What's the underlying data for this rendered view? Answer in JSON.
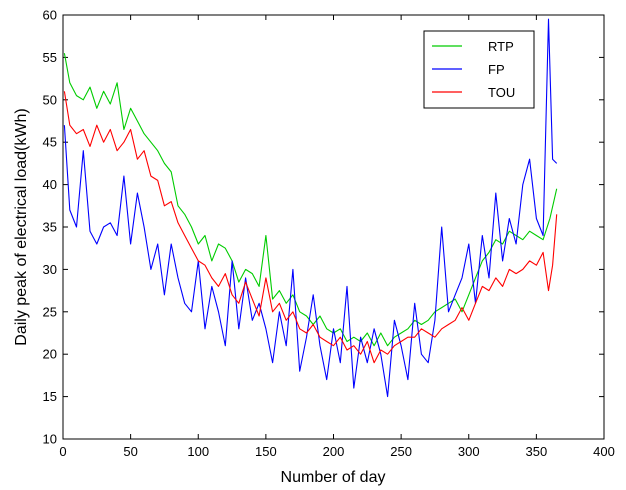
{
  "chart_data": {
    "type": "line",
    "title": "",
    "xlabel": "Number of day",
    "ylabel": "Daily peak of electrical load(kWh)",
    "xlim": [
      0,
      400
    ],
    "ylim": [
      10,
      60
    ],
    "xticks": [
      0,
      50,
      100,
      150,
      200,
      250,
      300,
      350,
      400
    ],
    "yticks": [
      10,
      15,
      20,
      25,
      30,
      35,
      40,
      45,
      50,
      55,
      60
    ],
    "grid": false,
    "legend_position": "top-right",
    "series": [
      {
        "name": "RTP",
        "color": "#00cc00",
        "x": [
          1,
          5,
          10,
          15,
          20,
          25,
          30,
          35,
          40,
          45,
          50,
          55,
          60,
          65,
          70,
          75,
          80,
          85,
          90,
          95,
          100,
          105,
          110,
          115,
          120,
          125,
          130,
          135,
          140,
          145,
          150,
          155,
          160,
          165,
          170,
          175,
          180,
          185,
          190,
          195,
          200,
          205,
          210,
          215,
          220,
          225,
          230,
          235,
          240,
          245,
          250,
          255,
          260,
          265,
          270,
          275,
          280,
          285,
          290,
          295,
          300,
          305,
          310,
          315,
          320,
          325,
          330,
          335,
          340,
          345,
          350,
          355,
          360,
          365
        ],
        "y": [
          55.5,
          52,
          50.5,
          50,
          51.5,
          49,
          51,
          49.5,
          52,
          46.5,
          49,
          47.5,
          46,
          45,
          44,
          42.5,
          41.5,
          37.5,
          36.5,
          35,
          33,
          34,
          31,
          33,
          32.5,
          31,
          28.5,
          30,
          29.5,
          28,
          34,
          26.5,
          27.5,
          26,
          27,
          25,
          24.5,
          23.5,
          24.5,
          23,
          22.5,
          23,
          21.5,
          22,
          21.5,
          22.5,
          21,
          22.5,
          21,
          22,
          22.5,
          23,
          24,
          23.5,
          24,
          25,
          25.5,
          26,
          26.5,
          25,
          27,
          29,
          31,
          32,
          33.5,
          33,
          34.5,
          34,
          33.5,
          34.5,
          34,
          33.5,
          36,
          39.5
        ]
      },
      {
        "name": "FP",
        "color": "#0000ff",
        "x": [
          1,
          5,
          10,
          15,
          20,
          25,
          30,
          35,
          40,
          45,
          50,
          55,
          60,
          65,
          70,
          75,
          80,
          85,
          90,
          95,
          100,
          105,
          110,
          115,
          120,
          125,
          130,
          135,
          140,
          145,
          150,
          155,
          160,
          165,
          170,
          175,
          180,
          185,
          190,
          195,
          200,
          205,
          210,
          215,
          220,
          225,
          230,
          235,
          240,
          245,
          250,
          255,
          260,
          265,
          270,
          275,
          280,
          285,
          290,
          295,
          300,
          305,
          310,
          315,
          320,
          325,
          330,
          335,
          340,
          345,
          350,
          355,
          359,
          362,
          365
        ],
        "y": [
          47,
          37,
          35,
          44,
          34.5,
          33,
          35,
          35.5,
          34,
          41,
          33,
          39,
          35,
          30,
          33,
          27,
          33,
          29,
          26,
          25,
          31,
          23,
          28,
          25,
          21,
          31,
          23,
          29,
          24,
          26,
          23,
          19,
          25,
          21,
          30,
          18,
          22,
          27,
          21,
          17,
          23,
          19,
          28,
          16,
          22,
          19,
          23,
          20,
          15,
          24,
          21,
          17,
          26,
          20,
          19,
          24,
          35,
          25,
          27,
          29,
          33,
          26,
          34,
          29,
          39,
          31,
          36,
          33,
          40,
          43,
          36,
          34,
          59.5,
          43,
          42.5
        ]
      },
      {
        "name": "TOU",
        "color": "#ff0000",
        "x": [
          1,
          5,
          10,
          15,
          20,
          25,
          30,
          35,
          40,
          45,
          50,
          55,
          60,
          65,
          70,
          75,
          80,
          85,
          90,
          95,
          100,
          105,
          110,
          115,
          120,
          125,
          130,
          135,
          140,
          145,
          150,
          155,
          160,
          165,
          170,
          175,
          180,
          185,
          190,
          195,
          200,
          205,
          210,
          215,
          220,
          225,
          230,
          235,
          240,
          245,
          250,
          255,
          260,
          265,
          270,
          275,
          280,
          285,
          290,
          295,
          300,
          305,
          310,
          315,
          320,
          325,
          330,
          335,
          340,
          345,
          350,
          355,
          359,
          362,
          365
        ],
        "y": [
          51,
          47,
          46,
          46.5,
          44.5,
          47,
          45,
          46.5,
          44,
          45,
          46.5,
          43,
          44,
          41,
          40.5,
          37.5,
          38,
          35.5,
          34,
          32.5,
          31,
          30.5,
          29,
          28,
          29.5,
          27,
          26,
          28.5,
          26.5,
          24.5,
          29,
          25,
          26,
          24,
          25,
          23,
          22.5,
          23.5,
          22,
          21.5,
          21,
          22,
          20.5,
          21,
          20,
          21.5,
          19,
          20.5,
          20,
          21,
          21.5,
          22,
          22,
          23,
          22.5,
          22,
          23,
          23.5,
          24,
          25.5,
          24,
          26,
          28,
          27.5,
          29,
          28,
          30,
          29.5,
          30,
          31,
          30.5,
          32,
          27.5,
          30.5,
          36.5
        ]
      }
    ]
  }
}
